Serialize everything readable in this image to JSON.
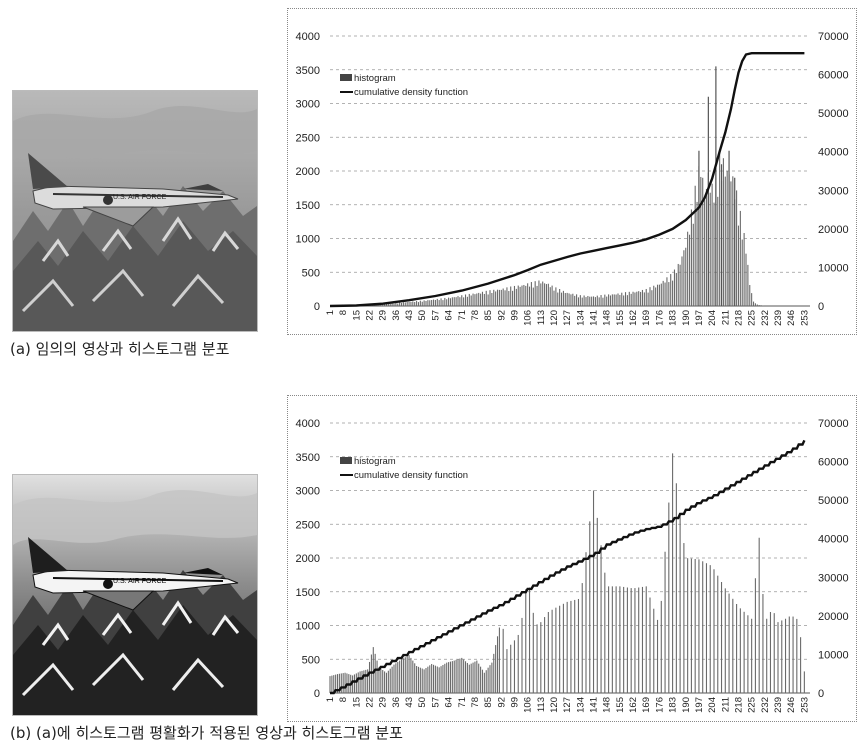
{
  "captions": {
    "a": "(a) 임의의 영상과 히스토그램 분포",
    "b": "(b) (a)에 히스토그램 평활화가 적용된 영상과 히스토그램 분포"
  },
  "photo_labels": {
    "text": "U.S. AIR FORCE"
  },
  "chart_data": [
    {
      "type": "bar",
      "legend": {
        "position": "top-left",
        "entries": [
          "histogram",
          "cumulative density function"
        ]
      },
      "x_ticks": [
        "1",
        "8",
        "15",
        "22",
        "29",
        "36",
        "43",
        "50",
        "57",
        "64",
        "71",
        "78",
        "85",
        "92",
        "99",
        "106",
        "113",
        "120",
        "127",
        "134",
        "141",
        "148",
        "155",
        "162",
        "169",
        "176",
        "183",
        "190",
        "197",
        "204",
        "211",
        "218",
        "225",
        "232",
        "239",
        "246",
        "253"
      ],
      "y_left": {
        "ticks": [
          "0",
          "500",
          "1000",
          "1500",
          "2000",
          "2500",
          "3000",
          "3500",
          "4000"
        ],
        "range": [
          0,
          4000
        ]
      },
      "y_right": {
        "ticks": [
          "0",
          "10000",
          "20000",
          "30000",
          "40000",
          "50000",
          "60000",
          "70000"
        ],
        "range": [
          0,
          70000
        ]
      },
      "grid": "horizontal dashed",
      "histogram": [
        [
          1,
          0
        ],
        [
          10,
          4
        ],
        [
          20,
          12
        ],
        [
          28,
          22
        ],
        [
          35,
          38
        ],
        [
          42,
          55
        ],
        [
          50,
          70
        ],
        [
          57,
          90
        ],
        [
          64,
          110
        ],
        [
          71,
          140
        ],
        [
          78,
          170
        ],
        [
          85,
          200
        ],
        [
          92,
          230
        ],
        [
          99,
          260
        ],
        [
          106,
          300
        ],
        [
          110,
          320
        ],
        [
          113,
          340
        ],
        [
          117,
          300
        ],
        [
          120,
          250
        ],
        [
          127,
          180
        ],
        [
          134,
          140
        ],
        [
          141,
          130
        ],
        [
          148,
          150
        ],
        [
          155,
          170
        ],
        [
          162,
          190
        ],
        [
          169,
          220
        ],
        [
          176,
          300
        ],
        [
          183,
          430
        ],
        [
          187,
          600
        ],
        [
          190,
          850
        ],
        [
          193,
          1250
        ],
        [
          196,
          1700
        ],
        [
          198,
          1950
        ],
        [
          200,
          1500
        ],
        [
          202,
          1800
        ],
        [
          204,
          1600
        ],
        [
          206,
          1750
        ],
        [
          208,
          2000
        ],
        [
          210,
          1950
        ],
        [
          212,
          1850
        ],
        [
          214,
          1800
        ],
        [
          216,
          1650
        ],
        [
          218,
          1350
        ],
        [
          220,
          1100
        ],
        [
          222,
          800
        ],
        [
          224,
          300
        ],
        [
          226,
          60
        ],
        [
          228,
          20
        ],
        [
          232,
          0
        ],
        [
          253,
          0
        ]
      ],
      "histogram_spikes": [
        [
          197,
          2300
        ],
        [
          202,
          3100
        ],
        [
          206,
          3550
        ],
        [
          209,
          2100
        ],
        [
          213,
          2300
        ],
        [
          216,
          1900
        ]
      ],
      "cdf": [
        [
          1,
          0
        ],
        [
          15,
          120
        ],
        [
          29,
          600
        ],
        [
          43,
          1500
        ],
        [
          57,
          2600
        ],
        [
          71,
          4000
        ],
        [
          85,
          5800
        ],
        [
          99,
          8000
        ],
        [
          106,
          9300
        ],
        [
          113,
          10700
        ],
        [
          120,
          11700
        ],
        [
          127,
          12700
        ],
        [
          134,
          13600
        ],
        [
          141,
          14300
        ],
        [
          148,
          15000
        ],
        [
          155,
          15700
        ],
        [
          162,
          16400
        ],
        [
          169,
          17300
        ],
        [
          176,
          18500
        ],
        [
          183,
          20000
        ],
        [
          190,
          22300
        ],
        [
          197,
          25500
        ],
        [
          200,
          28000
        ],
        [
          204,
          33000
        ],
        [
          208,
          40000
        ],
        [
          211,
          45000
        ],
        [
          214,
          51000
        ],
        [
          216,
          56000
        ],
        [
          218,
          60500
        ],
        [
          220,
          63500
        ],
        [
          222,
          65200
        ],
        [
          225,
          65536
        ],
        [
          253,
          65536
        ]
      ]
    },
    {
      "type": "bar",
      "legend": {
        "position": "top-left",
        "entries": [
          "histogram",
          "cumulative density function"
        ]
      },
      "x_ticks": [
        "1",
        "8",
        "15",
        "22",
        "29",
        "36",
        "43",
        "50",
        "57",
        "64",
        "71",
        "78",
        "85",
        "92",
        "99",
        "106",
        "113",
        "120",
        "127",
        "134",
        "141",
        "148",
        "155",
        "162",
        "169",
        "176",
        "183",
        "190",
        "197",
        "204",
        "211",
        "218",
        "225",
        "232",
        "239",
        "246",
        "253"
      ],
      "y_left": {
        "ticks": [
          "0",
          "500",
          "1000",
          "1500",
          "2000",
          "2500",
          "3000",
          "3500",
          "4000"
        ],
        "range": [
          0,
          4000
        ]
      },
      "y_right": {
        "ticks": [
          "0",
          "10000",
          "20000",
          "30000",
          "40000",
          "50000",
          "60000",
          "70000"
        ],
        "range": [
          0,
          70000
        ]
      },
      "grid": "horizontal dashed",
      "histogram": [
        [
          1,
          250
        ],
        [
          5,
          280
        ],
        [
          9,
          300
        ],
        [
          13,
          260
        ],
        [
          17,
          320
        ],
        [
          21,
          350
        ],
        [
          24,
          680
        ],
        [
          27,
          380
        ],
        [
          31,
          300
        ],
        [
          35,
          420
        ],
        [
          39,
          500
        ],
        [
          43,
          560
        ],
        [
          47,
          400
        ],
        [
          51,
          350
        ],
        [
          55,
          430
        ],
        [
          59,
          380
        ],
        [
          63,
          450
        ],
        [
          67,
          480
        ],
        [
          71,
          520
        ],
        [
          75,
          420
        ],
        [
          79,
          480
        ],
        [
          83,
          300
        ],
        [
          87,
          450
        ],
        [
          92,
          1100
        ],
        [
          95,
          650
        ],
        [
          99,
          780
        ],
        [
          102,
          900
        ],
        [
          106,
          1750
        ],
        [
          110,
          1000
        ],
        [
          113,
          1050
        ],
        [
          117,
          1200
        ],
        [
          120,
          1250
        ],
        [
          127,
          1350
        ],
        [
          134,
          1400
        ],
        [
          141,
          3000
        ],
        [
          148,
          1580
        ],
        [
          155,
          1580
        ],
        [
          162,
          1550
        ],
        [
          169,
          1580
        ],
        [
          176,
          1000
        ],
        [
          183,
          3550
        ],
        [
          190,
          2000
        ],
        [
          197,
          1980
        ],
        [
          204,
          1880
        ],
        [
          211,
          1550
        ],
        [
          218,
          1280
        ],
        [
          225,
          1100
        ],
        [
          229,
          2300
        ],
        [
          232,
          1050
        ],
        [
          236,
          1250
        ],
        [
          239,
          1050
        ],
        [
          243,
          1100
        ],
        [
          246,
          1150
        ],
        [
          250,
          1080
        ],
        [
          253,
          320
        ]
      ],
      "cdf": [
        [
          1,
          0
        ],
        [
          8,
          1700
        ],
        [
          15,
          3500
        ],
        [
          22,
          5300
        ],
        [
          29,
          7000
        ],
        [
          36,
          8800
        ],
        [
          43,
          10600
        ],
        [
          50,
          12400
        ],
        [
          57,
          14200
        ],
        [
          64,
          16000
        ],
        [
          71,
          17800
        ],
        [
          78,
          19600
        ],
        [
          85,
          21400
        ],
        [
          92,
          23000
        ],
        [
          99,
          25000
        ],
        [
          106,
          27000
        ],
        [
          113,
          29000
        ],
        [
          120,
          31000
        ],
        [
          127,
          32800
        ],
        [
          134,
          34300
        ],
        [
          141,
          36000
        ],
        [
          148,
          38500
        ],
        [
          155,
          40000
        ],
        [
          162,
          41500
        ],
        [
          169,
          42500
        ],
        [
          176,
          43200
        ],
        [
          183,
          45000
        ],
        [
          190,
          47500
        ],
        [
          197,
          49500
        ],
        [
          204,
          51000
        ],
        [
          211,
          53000
        ],
        [
          218,
          55000
        ],
        [
          225,
          57000
        ],
        [
          232,
          59000
        ],
        [
          239,
          61000
        ],
        [
          246,
          63000
        ],
        [
          253,
          65500
        ]
      ]
    }
  ]
}
